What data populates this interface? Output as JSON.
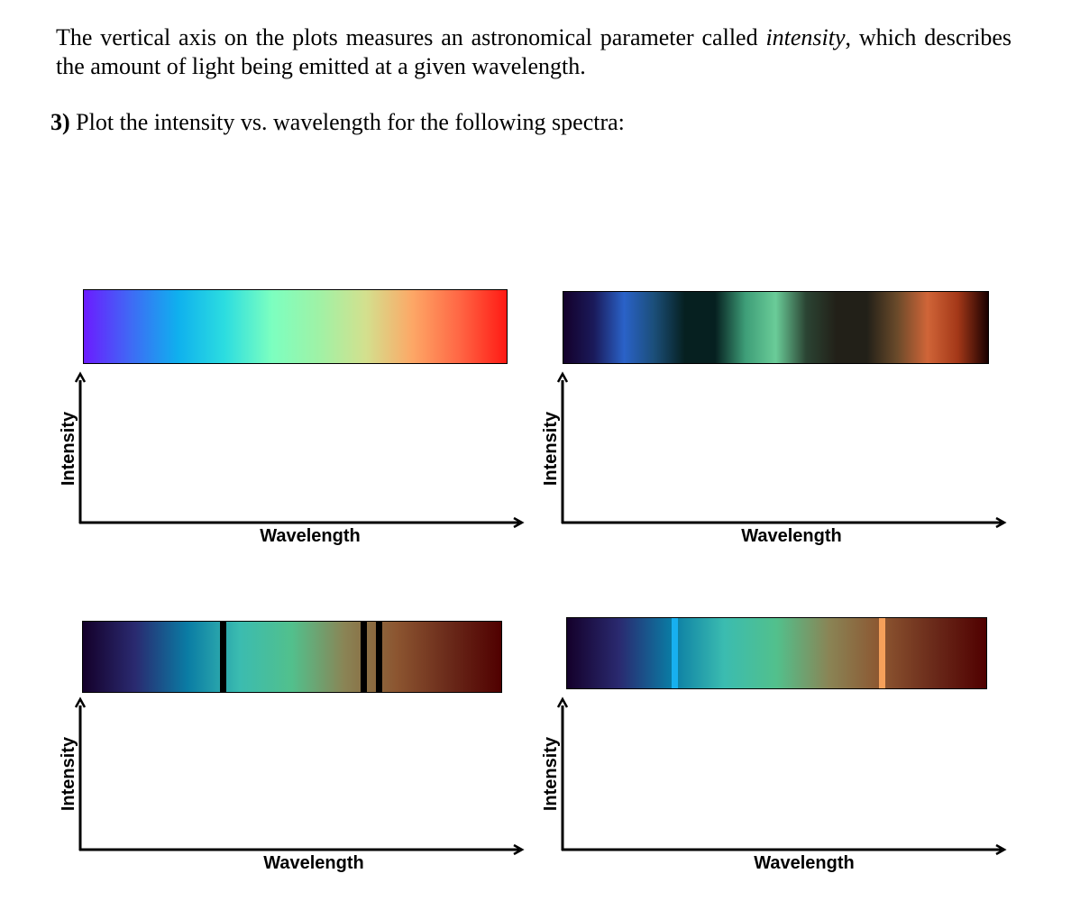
{
  "intro": {
    "before": "The vertical axis on the plots measures an astronomical parameter called ",
    "emphasis": "intensity",
    "after": ", which describes the amount of light being emitted at a given wavelength."
  },
  "question": {
    "number": "3)",
    "text": "Plot the intensity vs. wavelength for the following spectra:"
  },
  "plots": [
    {
      "spectrum": {
        "type": "continuous",
        "gradient": [
          "#6b1cff",
          "#3f6af5",
          "#0fb0ee",
          "#2cdde0",
          "#7cffc0",
          "#9ff2a6",
          "#d3e08e",
          "#fda766",
          "#ff6644",
          "#ff1a14"
        ],
        "lines": []
      },
      "x_label": "Wavelength",
      "y_label": "Intensity"
    },
    {
      "spectrum": {
        "type": "emission",
        "gradient": [
          "#14002a",
          "#1a1a5a",
          "#2a62c8",
          "#1b4e78",
          "#062020",
          "#062020",
          "#3e9e78",
          "#6acc98",
          "#2b4433",
          "#222018",
          "#222018",
          "#6a4a2a",
          "#d06538",
          "#a43818",
          "#1a0000"
        ],
        "lines": []
      },
      "x_label": "Wavelength",
      "y_label": "Intensity"
    },
    {
      "spectrum": {
        "type": "absorption",
        "gradient": [
          "#14002a",
          "#2a2a70",
          "#0a7ca4",
          "#3bbcb0",
          "#52c08c",
          "#8a8455",
          "#8c5530",
          "#6a2a1a",
          "#500000"
        ],
        "lines": [
          {
            "color": "#000000",
            "position": 0.336
          },
          {
            "color": "#000000",
            "position": 0.672
          },
          {
            "color": "#000000",
            "position": 0.709
          }
        ]
      },
      "x_label": "Wavelength",
      "y_label": "Intensity"
    },
    {
      "spectrum": {
        "type": "emission-lines",
        "gradient": [
          "#14002a",
          "#2a2a70",
          "#0a7ca4",
          "#3bbcb0",
          "#52c08c",
          "#8a8455",
          "#8c5530",
          "#6a2a1a",
          "#500000"
        ],
        "lines": [
          {
            "color": "#17b0ef",
            "position": 0.257
          },
          {
            "color": "#f6a05a",
            "position": 0.752
          }
        ]
      },
      "x_label": "Wavelength",
      "y_label": "Intensity"
    }
  ]
}
